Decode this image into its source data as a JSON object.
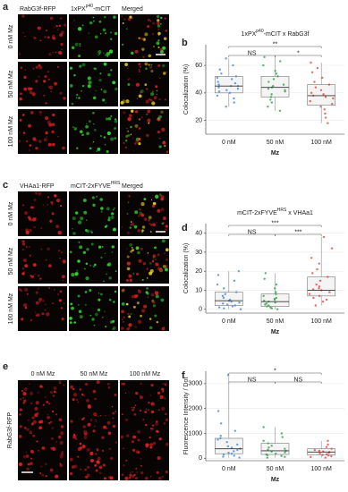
{
  "panel_labels": [
    "a",
    "b",
    "c",
    "d",
    "e",
    "f"
  ],
  "panel_a": {
    "columns": [
      {
        "base": "RabG3f-RFP"
      },
      {
        "base": "1xPX",
        "sup": "p40",
        "tail": "-mCIT"
      },
      {
        "base": "Merged"
      }
    ],
    "rows": [
      "0 nM Mz",
      "50 nM Mz",
      "100 nM Mz"
    ]
  },
  "panel_c": {
    "columns": [
      {
        "base": "VHAa1-RFP"
      },
      {
        "base": "mCIT-2xFYVE",
        "sup": "HRS"
      },
      {
        "base": "Merged"
      }
    ],
    "rows": [
      "0 nM Mz",
      "50 nM Mz",
      "100 nM Mz"
    ]
  },
  "panel_e": {
    "columns": [
      "0 nM Mz",
      "50 nM Mz",
      "100 nM Mz"
    ],
    "ylabel": "RabG3f-RFP"
  },
  "chart_data": [
    {
      "type": "box",
      "title": {
        "base": "1xPX",
        "sup": "p40",
        "tail": "-mCIT x RabG3f"
      },
      "ylabel": "Colocalization (%)",
      "xlabel": "Mz",
      "categories": [
        "0 nM",
        "50 nM",
        "100 nM"
      ],
      "colors": [
        "#4a90d9",
        "#3aa655",
        "#e0504a"
      ],
      "ylim": [
        10,
        75
      ],
      "yticks": [
        20,
        40,
        60
      ],
      "grid": true,
      "boxes": [
        {
          "min": 30,
          "q1": 40,
          "median": 45,
          "q3": 52,
          "max": 65
        },
        {
          "min": 27,
          "q1": 37,
          "median": 44,
          "q3": 52,
          "max": 66
        },
        {
          "min": 18,
          "q1": 31,
          "median": 38,
          "q3": 46,
          "max": 62
        }
      ],
      "points": [
        [
          30,
          33,
          36,
          38,
          40,
          41,
          42,
          43,
          44,
          45,
          45,
          46,
          47,
          48,
          50,
          51,
          52,
          54,
          57,
          60,
          65
        ],
        [
          27,
          30,
          33,
          35,
          37,
          39,
          41,
          42,
          43,
          44,
          45,
          46,
          48,
          50,
          52,
          54,
          56,
          60,
          63,
          66
        ],
        [
          18,
          22,
          25,
          28,
          30,
          32,
          34,
          36,
          37,
          38,
          39,
          40,
          42,
          44,
          46,
          48,
          51,
          55,
          58,
          62
        ]
      ],
      "annotations": [
        {
          "label": "**",
          "between": [
            "0 nM",
            "100 nM"
          ]
        },
        {
          "label": "NS",
          "between": [
            "0 nM",
            "50 nM"
          ]
        },
        {
          "label": "*",
          "between": [
            "50 nM",
            "100 nM"
          ]
        }
      ]
    },
    {
      "type": "box",
      "title": {
        "base": "mCIT-2xFYVE",
        "sup": "HRS",
        "tail": " x VHAa1"
      },
      "ylabel": "Colocalization (%)",
      "xlabel": "Mz",
      "categories": [
        "0 nM",
        "50 nM",
        "100 nM"
      ],
      "colors": [
        "#4a90d9",
        "#3aa655",
        "#e0504a"
      ],
      "ylim": [
        -2,
        45
      ],
      "yticks": [
        0,
        10,
        20,
        30,
        40
      ],
      "grid": true,
      "boxes": [
        {
          "min": 0,
          "q1": 2,
          "median": 4.5,
          "q3": 9,
          "max": 20
        },
        {
          "min": 0,
          "q1": 1.5,
          "median": 4,
          "q3": 8,
          "max": 19
        },
        {
          "min": 2,
          "q1": 7,
          "median": 10,
          "q3": 17,
          "max": 38
        }
      ],
      "points": [
        [
          0,
          0.5,
          1,
          1.5,
          2,
          2.5,
          3,
          3.5,
          4,
          4.5,
          5,
          6,
          7,
          8,
          9,
          11,
          13,
          15,
          18,
          20
        ],
        [
          0,
          0.5,
          1,
          1.5,
          2,
          2.5,
          3,
          3.5,
          4,
          4.5,
          5,
          5.5,
          6,
          7,
          8,
          9,
          11,
          13,
          16,
          19
        ],
        [
          2,
          4,
          5,
          6,
          7,
          8,
          9,
          10,
          10.5,
          11,
          12,
          13,
          15,
          17,
          19,
          21,
          24,
          27,
          32,
          38
        ]
      ],
      "annotations": [
        {
          "label": "***",
          "between": [
            "0 nM",
            "100 nM"
          ]
        },
        {
          "label": "NS",
          "between": [
            "0 nM",
            "50 nM"
          ]
        },
        {
          "label": "***",
          "between": [
            "50 nM",
            "100 nM"
          ]
        }
      ]
    },
    {
      "type": "box",
      "ylabel": "Fluorescence Intensity / Dot",
      "xlabel": "Mz",
      "categories": [
        "0 nM",
        "50 nM",
        "100 nM"
      ],
      "colors": [
        "#4a90d9",
        "#3aa655",
        "#e0504a"
      ],
      "ylim": [
        -100,
        3500
      ],
      "yticks": [
        0,
        1000,
        2000,
        3000
      ],
      "grid": true,
      "boxes": [
        {
          "min": 20,
          "q1": 180,
          "median": 380,
          "q3": 800,
          "max": 3350
        },
        {
          "min": 20,
          "q1": 150,
          "median": 300,
          "q3": 600,
          "max": 1250
        },
        {
          "min": 20,
          "q1": 130,
          "median": 250,
          "q3": 380,
          "max": 700
        }
      ],
      "points": [
        [
          20,
          60,
          100,
          150,
          180,
          220,
          280,
          330,
          380,
          420,
          480,
          550,
          650,
          750,
          800,
          900,
          1100,
          1400,
          1900,
          3350
        ],
        [
          20,
          50,
          90,
          120,
          150,
          190,
          230,
          270,
          300,
          340,
          380,
          430,
          500,
          600,
          700,
          850,
          1000,
          1250
        ],
        [
          20,
          50,
          80,
          110,
          130,
          160,
          190,
          220,
          250,
          270,
          300,
          330,
          380,
          450,
          550,
          700
        ]
      ],
      "annotations": [
        {
          "label": "*",
          "between": [
            "0 nM",
            "100 nM"
          ]
        },
        {
          "label": "NS",
          "between": [
            "0 nM",
            "50 nM"
          ]
        },
        {
          "label": "NS",
          "between": [
            "50 nM",
            "100 nM"
          ]
        }
      ]
    }
  ]
}
